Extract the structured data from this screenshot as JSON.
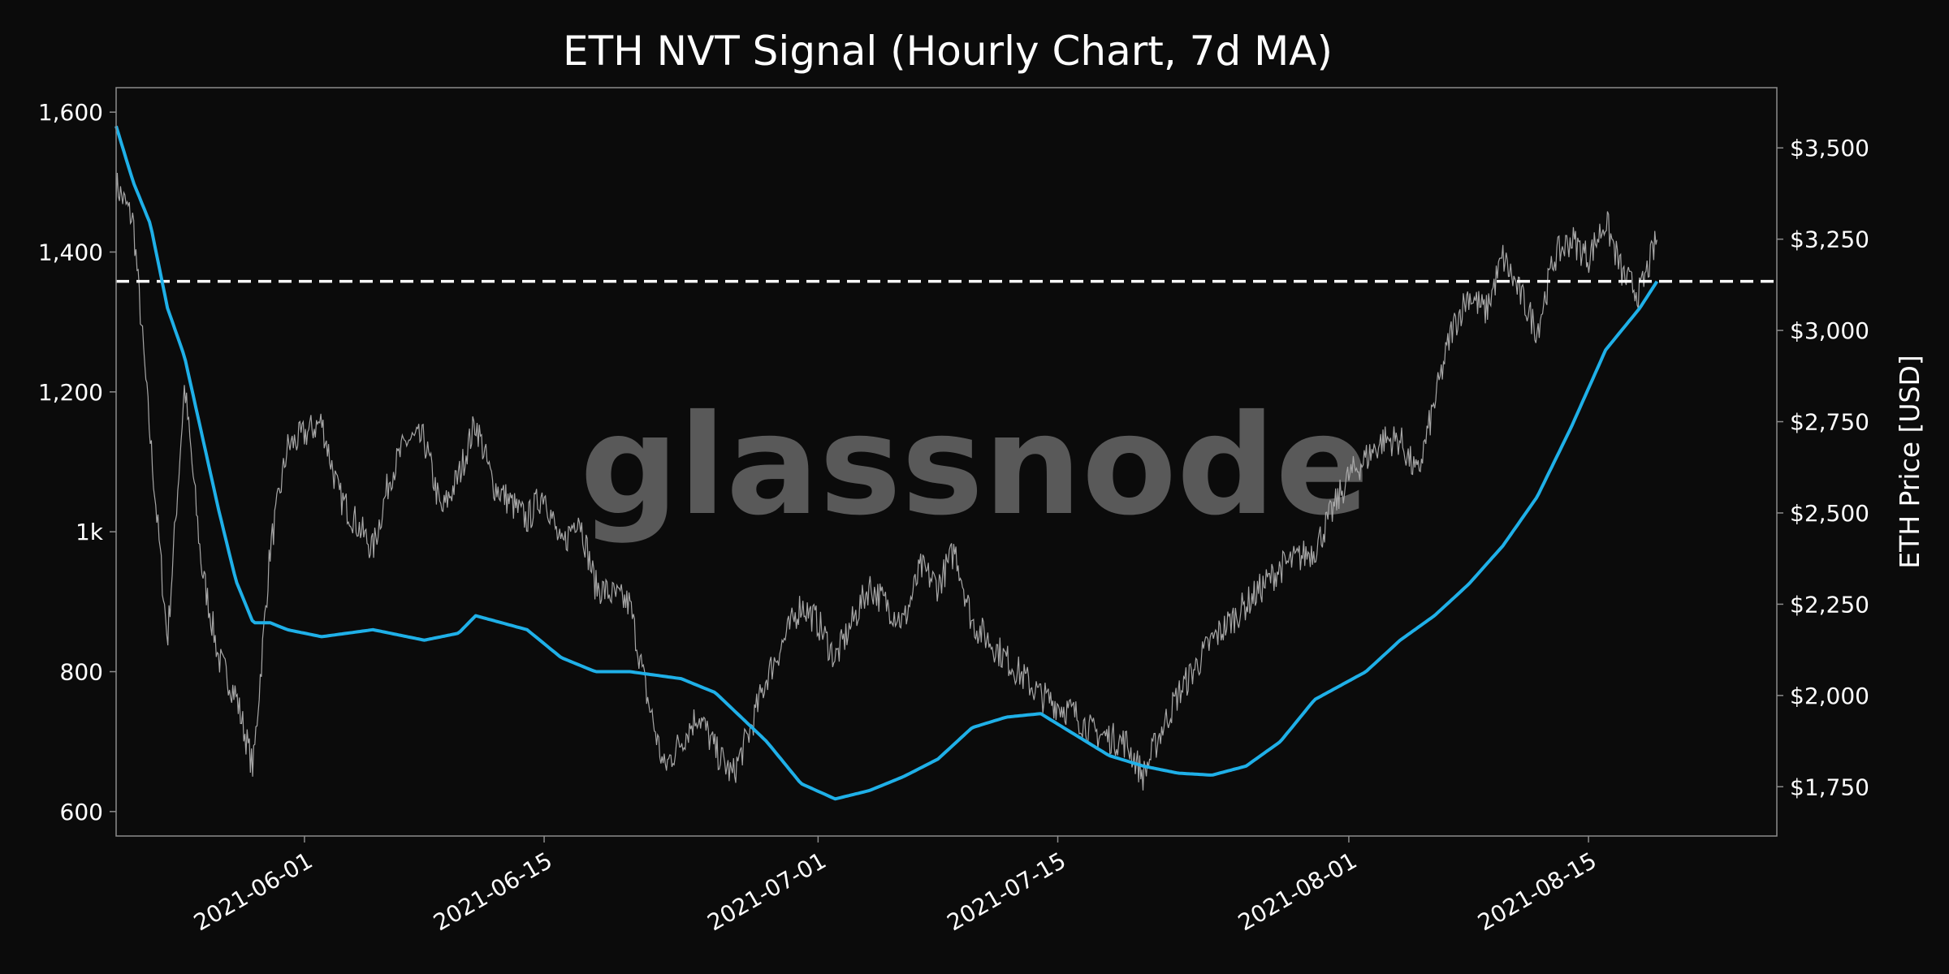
{
  "chart_data": {
    "type": "line",
    "title": "ETH NVT Signal (Hourly Chart, 7d MA)",
    "watermark": "glassnode",
    "xlabel": "",
    "ylabel_left": "",
    "ylabel_right": "ETH Price [USD]",
    "x_range": [
      "2021-05-21",
      "2021-08-26"
    ],
    "x_ticks": [
      "2021-06-01",
      "2021-06-15",
      "2021-07-01",
      "2021-07-15",
      "2021-08-01",
      "2021-08-15"
    ],
    "y_left_range": [
      565,
      1635
    ],
    "y_left_ticks": [
      {
        "value": 600,
        "label": "600"
      },
      {
        "value": 800,
        "label": "800"
      },
      {
        "value": 1000,
        "label": "1k"
      },
      {
        "value": 1200,
        "label": "1,200"
      },
      {
        "value": 1400,
        "label": "1,400"
      },
      {
        "value": 1600,
        "label": "1,600"
      }
    ],
    "y_right_range": [
      1615,
      3665
    ],
    "y_right_ticks": [
      {
        "value": 1750,
        "label": "$1,750"
      },
      {
        "value": 2000,
        "label": "$2,000"
      },
      {
        "value": 2250,
        "label": "$2,250"
      },
      {
        "value": 2500,
        "label": "$2,500"
      },
      {
        "value": 2750,
        "label": "$2,750"
      },
      {
        "value": 3000,
        "label": "$3,000"
      },
      {
        "value": 3250,
        "label": "$3,250"
      },
      {
        "value": 3500,
        "label": "$3,500"
      }
    ],
    "threshold_line": {
      "value": 1358,
      "axis": "left",
      "style": "dashed",
      "color": "#ffffff"
    },
    "series": [
      {
        "key": "nvt",
        "axis": "left",
        "color": "#1fb0e8",
        "x": [
          "2021-05-21",
          "2021-05-22",
          "2021-05-23",
          "2021-05-24",
          "2021-05-25",
          "2021-05-26",
          "2021-05-27",
          "2021-05-28",
          "2021-05-29",
          "2021-05-30",
          "2021-05-31",
          "2021-06-02",
          "2021-06-05",
          "2021-06-08",
          "2021-06-10",
          "2021-06-11",
          "2021-06-14",
          "2021-06-16",
          "2021-06-18",
          "2021-06-20",
          "2021-06-23",
          "2021-06-25",
          "2021-06-28",
          "2021-06-30",
          "2021-07-02",
          "2021-07-04",
          "2021-07-06",
          "2021-07-08",
          "2021-07-10",
          "2021-07-12",
          "2021-07-14",
          "2021-07-16",
          "2021-07-18",
          "2021-07-20",
          "2021-07-22",
          "2021-07-24",
          "2021-07-26",
          "2021-07-28",
          "2021-07-30",
          "2021-08-02",
          "2021-08-04",
          "2021-08-06",
          "2021-08-08",
          "2021-08-10",
          "2021-08-12",
          "2021-08-14",
          "2021-08-16",
          "2021-08-18",
          "2021-08-19"
        ],
        "values": [
          1580,
          1500,
          1440,
          1320,
          1250,
          1140,
          1030,
          930,
          870,
          870,
          860,
          850,
          860,
          845,
          855,
          880,
          860,
          820,
          800,
          800,
          790,
          770,
          700,
          640,
          618,
          630,
          650,
          675,
          720,
          735,
          740,
          710,
          680,
          665,
          655,
          652,
          665,
          700,
          760,
          800,
          845,
          880,
          925,
          980,
          1050,
          1150,
          1260,
          1320,
          1358
        ]
      },
      {
        "key": "eth_price",
        "axis": "right",
        "color": "#a6a6a6",
        "x": [
          "2021-05-21",
          "2021-05-22",
          "2021-05-23",
          "2021-05-24",
          "2021-05-25",
          "2021-05-26",
          "2021-05-27",
          "2021-05-28",
          "2021-05-29",
          "2021-05-30",
          "2021-05-31",
          "2021-06-02",
          "2021-06-03",
          "2021-06-05",
          "2021-06-06",
          "2021-06-07",
          "2021-06-08",
          "2021-06-09",
          "2021-06-10",
          "2021-06-11",
          "2021-06-12",
          "2021-06-14",
          "2021-06-15",
          "2021-06-16",
          "2021-06-17",
          "2021-06-18",
          "2021-06-20",
          "2021-06-21",
          "2021-06-22",
          "2021-06-24",
          "2021-06-25",
          "2021-06-26",
          "2021-06-27",
          "2021-06-28",
          "2021-06-29",
          "2021-06-30",
          "2021-07-01",
          "2021-07-02",
          "2021-07-04",
          "2021-07-06",
          "2021-07-07",
          "2021-07-08",
          "2021-07-09",
          "2021-07-10",
          "2021-07-12",
          "2021-07-14",
          "2021-07-16",
          "2021-07-17",
          "2021-07-19",
          "2021-07-20",
          "2021-07-21",
          "2021-07-22",
          "2021-07-24",
          "2021-07-26",
          "2021-07-28",
          "2021-07-30",
          "2021-08-01",
          "2021-08-03",
          "2021-08-04",
          "2021-08-05",
          "2021-08-06",
          "2021-08-07",
          "2021-08-08",
          "2021-08-09",
          "2021-08-10",
          "2021-08-11",
          "2021-08-12",
          "2021-08-13",
          "2021-08-14",
          "2021-08-15",
          "2021-08-16",
          "2021-08-17",
          "2021-08-18",
          "2021-08-19"
        ],
        "values": [
          3400,
          3300,
          2700,
          2150,
          2850,
          2350,
          2100,
          2000,
          1800,
          2400,
          2680,
          2750,
          2550,
          2400,
          2600,
          2700,
          2700,
          2500,
          2600,
          2750,
          2580,
          2480,
          2560,
          2400,
          2500,
          2300,
          2250,
          2000,
          1800,
          1950,
          1850,
          1780,
          1900,
          2050,
          2150,
          2250,
          2200,
          2100,
          2300,
          2200,
          2350,
          2300,
          2400,
          2200,
          2100,
          2000,
          1950,
          1900,
          1870,
          1780,
          1900,
          2000,
          2150,
          2250,
          2350,
          2400,
          2600,
          2700,
          2700,
          2600,
          2800,
          3000,
          3100,
          3050,
          3200,
          3100,
          3000,
          3200,
          3250,
          3200,
          3300,
          3150,
          3100,
          3250
        ]
      }
    ]
  }
}
